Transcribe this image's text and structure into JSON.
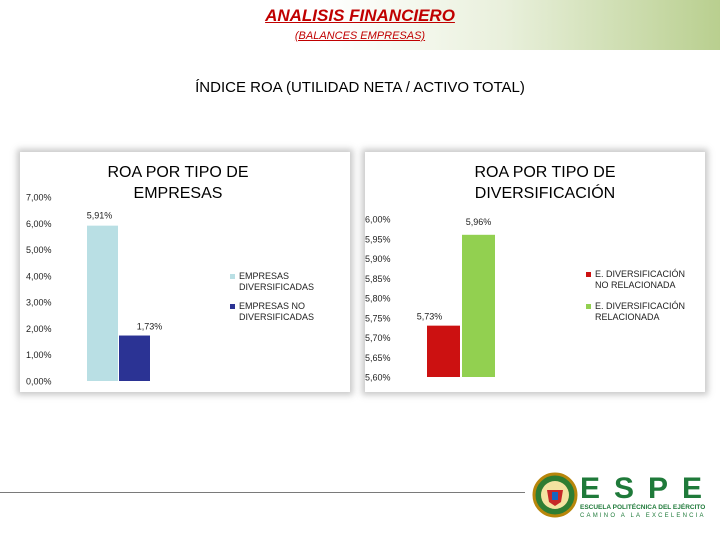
{
  "header": {
    "title": "ANALISIS FINANCIERO",
    "subtitle": "(BALANCES EMPRESAS)"
  },
  "slide_heading": "ÍNDICE ROA (UTILIDAD NETA / ACTIVO TOTAL)",
  "chart_data": [
    {
      "type": "bar",
      "title": "ROA POR TIPO DE EMPRESAS",
      "title_lines": [
        "ROA POR TIPO DE",
        "EMPRESAS"
      ],
      "xlabel": "",
      "ylabel": "",
      "ylim": [
        0,
        7
      ],
      "ytick_labels": [
        "0,00%",
        "1,00%",
        "2,00%",
        "3,00%",
        "4,00%",
        "5,00%",
        "6,00%",
        "7,00%"
      ],
      "legend_position": "right",
      "grid": false,
      "series": [
        {
          "name": "EMPRESAS DIVERSIFICADAS",
          "legend_lines": [
            "EMPRESAS",
            "DIVERSIFICADAS"
          ],
          "values": [
            5.91
          ],
          "label": "5,91%",
          "color": "#b9dfe4"
        },
        {
          "name": "EMPRESAS NO DIVERSIFICADAS",
          "legend_lines": [
            "EMPRESAS NO",
            "DIVERSIFICADAS"
          ],
          "values": [
            1.73
          ],
          "label": "1,73%",
          "color": "#2b3394"
        }
      ]
    },
    {
      "type": "bar",
      "title": "ROA POR TIPO DE DIVERSIFICACIÓN",
      "title_lines": [
        "ROA POR TIPO DE",
        "DIVERSIFICACIÓN"
      ],
      "xlabel": "",
      "ylabel": "",
      "ylim": [
        5.6,
        6.0
      ],
      "ytick_labels": [
        "5,60%",
        "5,65%",
        "5,70%",
        "5,75%",
        "5,80%",
        "5,85%",
        "5,90%",
        "5,95%",
        "6,00%"
      ],
      "legend_position": "right",
      "grid": false,
      "series": [
        {
          "name": "E. DIVERSIFICACIÓN NO RELACIONADA",
          "legend_lines": [
            "E. DIVERSIFICACIÓN",
            "NO RELACIONADA"
          ],
          "values": [
            5.73
          ],
          "label": "5,73%",
          "color": "#cc1111"
        },
        {
          "name": "E. DIVERSIFICACIÓN RELACIONADA",
          "legend_lines": [
            "E. DIVERSIFICACIÓN",
            "RELACIONADA"
          ],
          "values": [
            5.96
          ],
          "label": "5,96%",
          "color": "#92d050"
        }
      ]
    }
  ],
  "logo": {
    "brand": "ESPE",
    "line1": "ESCUELA POLITÉCNICA DEL EJÉRCITO",
    "line2": "CAMINO A LA EXCELENCIA",
    "color": "#1f7a3a"
  }
}
